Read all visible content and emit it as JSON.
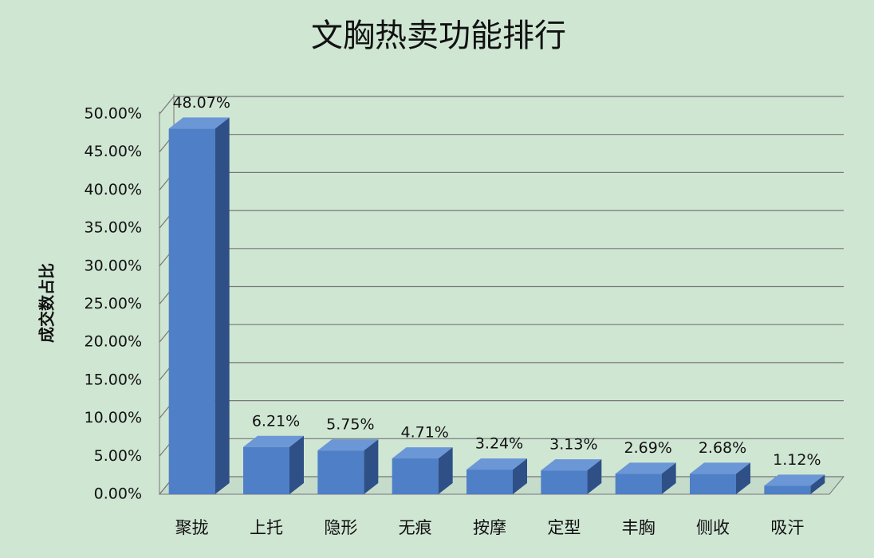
{
  "chart_data": {
    "type": "bar3d",
    "title": "文胸热卖功能排行",
    "y_label": "成交数占比",
    "categories": [
      "聚拢",
      "上托",
      "隐形",
      "无痕",
      "按摩",
      "定型",
      "丰胸",
      "侧收",
      "吸汗"
    ],
    "values": [
      48.07,
      6.21,
      5.75,
      4.71,
      3.24,
      3.13,
      2.69,
      2.68,
      1.12
    ],
    "value_labels": [
      "48.07%",
      "6.21%",
      "5.75%",
      "4.71%",
      "3.24%",
      "3.13%",
      "2.69%",
      "2.68%",
      "1.12%"
    ],
    "color": "#4f7fc6",
    "ylim": [
      0,
      50
    ],
    "yticks": [
      {
        "value": 0,
        "label": "0.00%"
      },
      {
        "value": 5,
        "label": "5.00%"
      },
      {
        "value": 10,
        "label": "10.00%"
      },
      {
        "value": 15,
        "label": "15.00%"
      },
      {
        "value": 20,
        "label": "20.00%"
      },
      {
        "value": 25,
        "label": "25.00%"
      },
      {
        "value": 30,
        "label": "30.00%"
      },
      {
        "value": 35,
        "label": "35.00%"
      },
      {
        "value": 40,
        "label": "40.00%"
      },
      {
        "value": 45,
        "label": "45.00%"
      },
      {
        "value": 50,
        "label": "50.00%"
      }
    ],
    "grid": true
  }
}
